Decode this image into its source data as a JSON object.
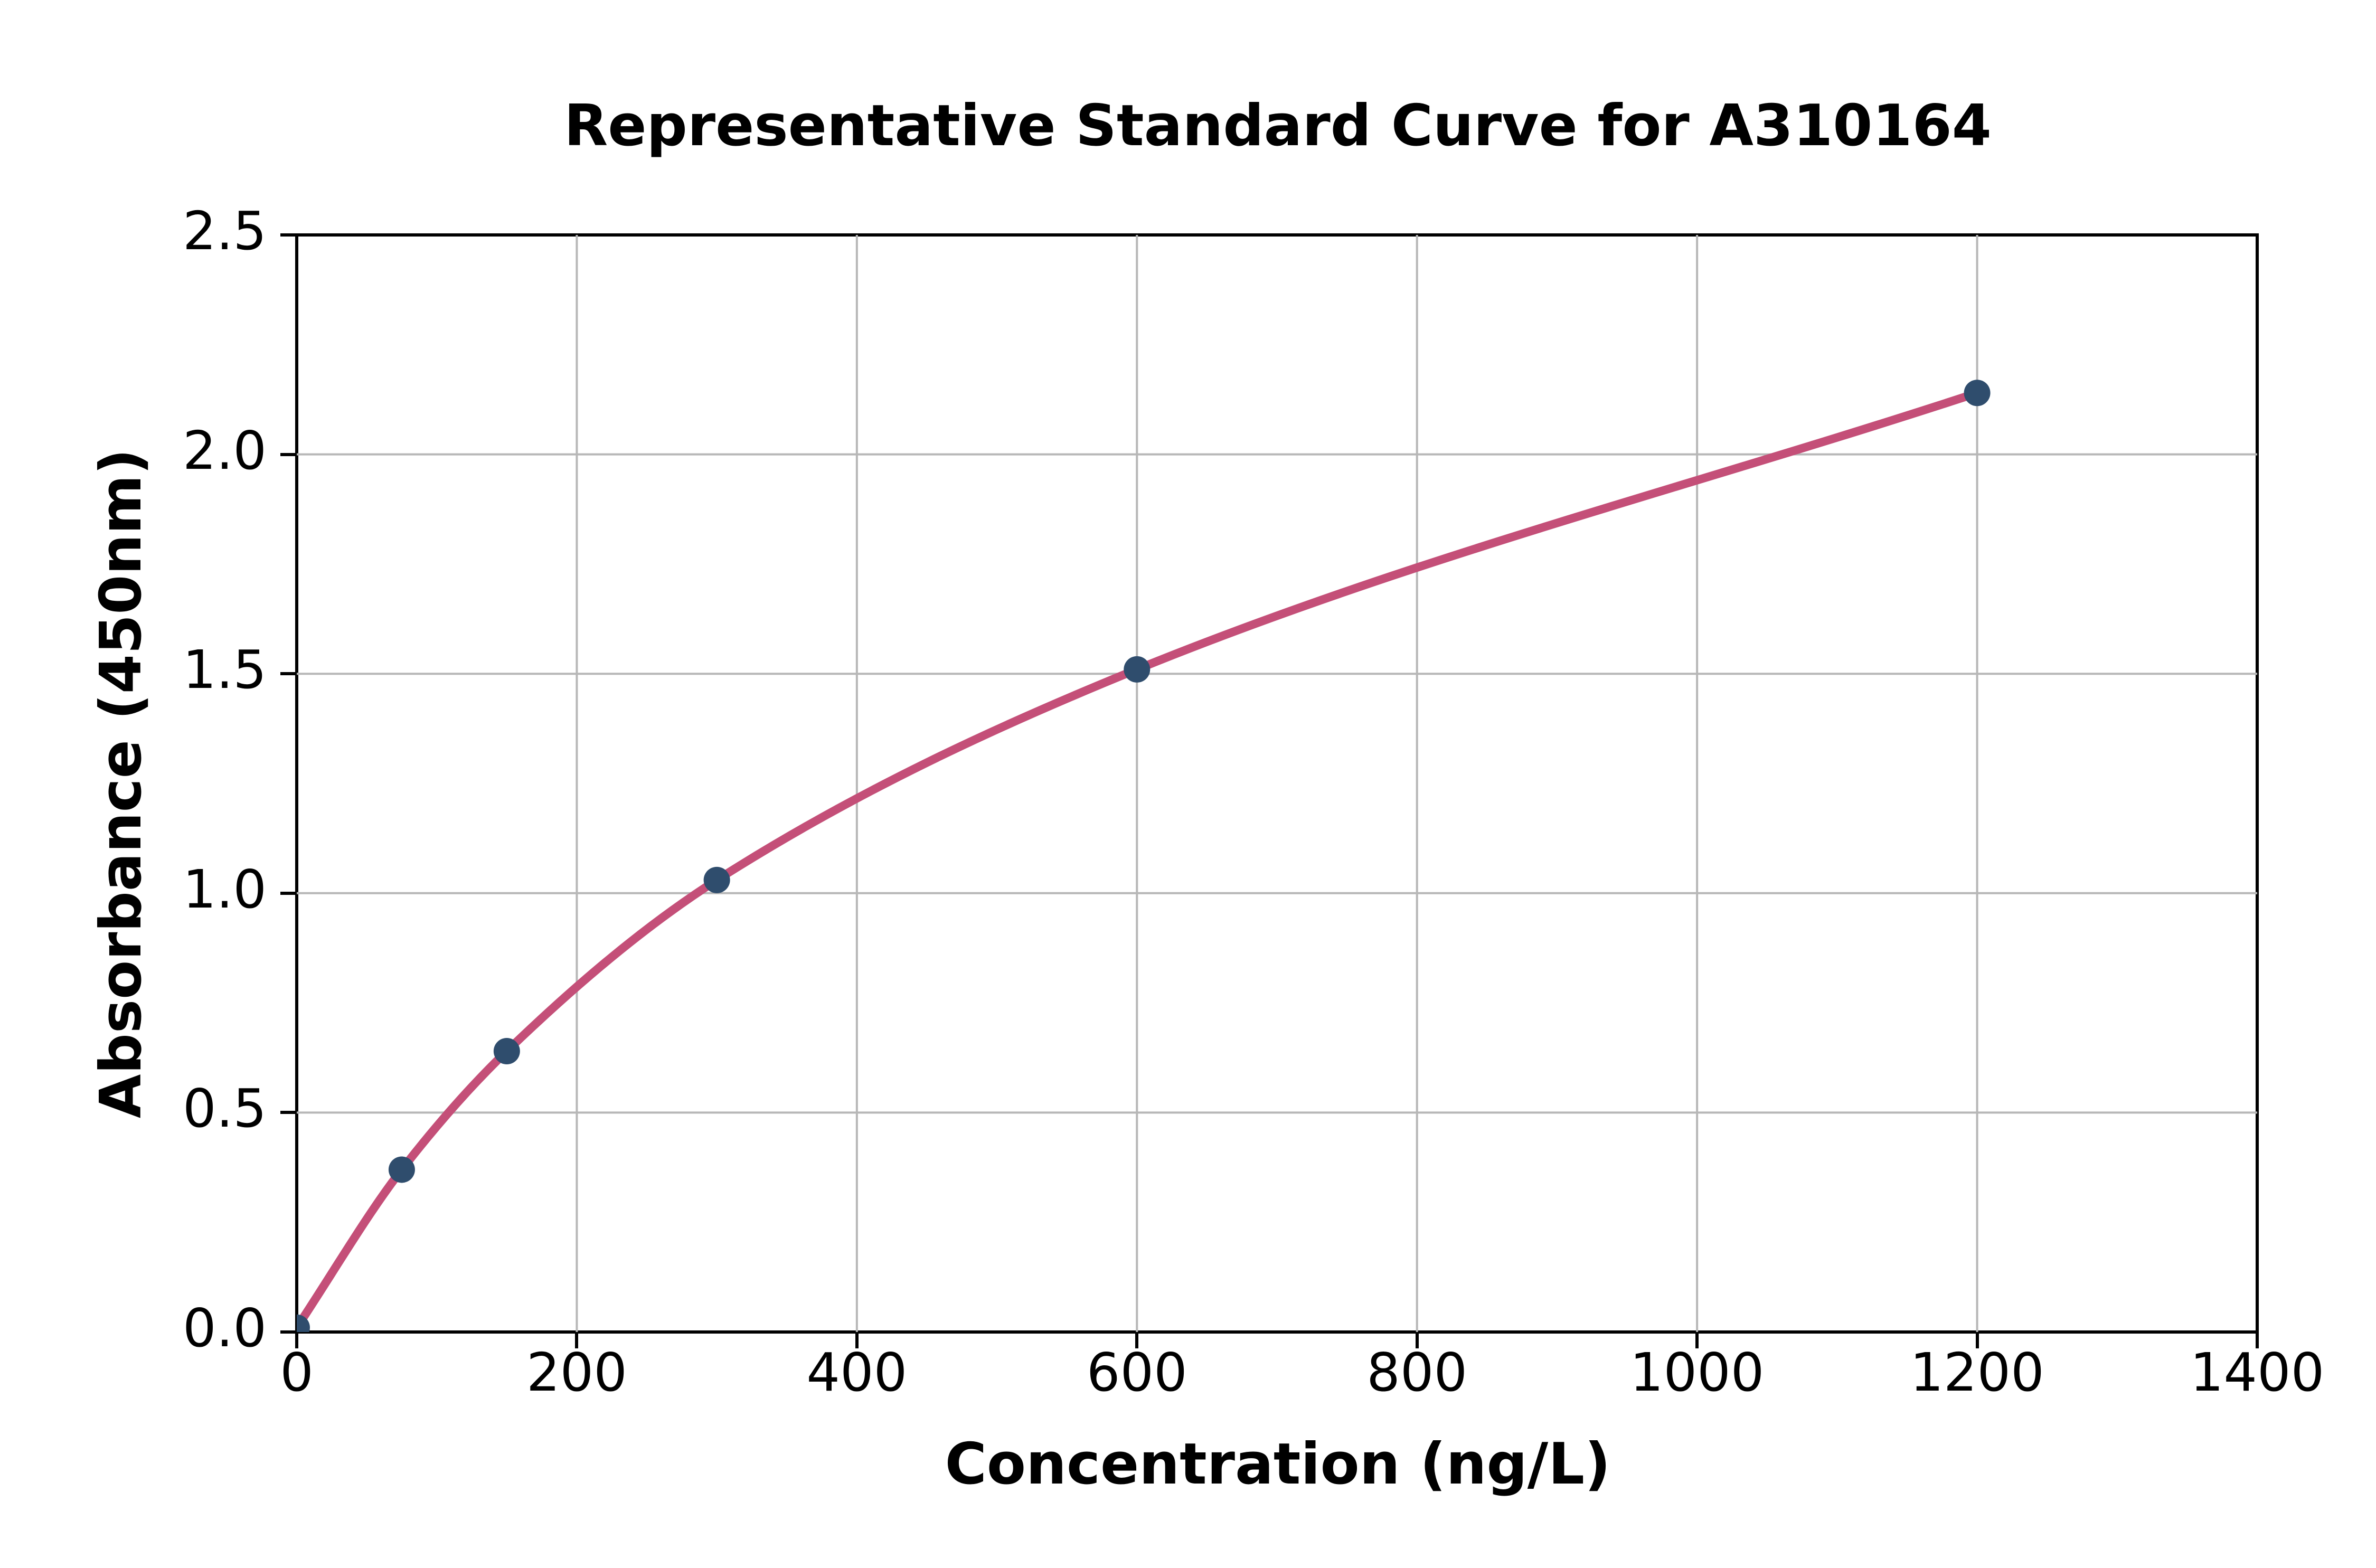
{
  "chart_data": {
    "type": "scatter",
    "title": "Representative Standard Curve for A310164",
    "xlabel": "Concentration (ng/L)",
    "ylabel": "Absorbance (450nm)",
    "xlim": [
      0,
      1400
    ],
    "ylim": [
      0,
      2.5
    ],
    "x_tick_labels": [
      "0",
      "200",
      "400",
      "600",
      "800",
      "1000",
      "1200",
      "1400"
    ],
    "y_tick_labels": [
      "0.0",
      "0.5",
      "1.0",
      "1.5",
      "2.0",
      "2.5"
    ],
    "grid": true,
    "legend": "none",
    "fit_curve": true,
    "points": [
      {
        "x": 0,
        "y": 0.01
      },
      {
        "x": 75,
        "y": 0.37
      },
      {
        "x": 150,
        "y": 0.64
      },
      {
        "x": 300,
        "y": 1.03
      },
      {
        "x": 600,
        "y": 1.51
      },
      {
        "x": 1200,
        "y": 2.14
      }
    ],
    "colors": {
      "curve": "#c44f78",
      "marker": "#2f4d6d",
      "grid": "#b7b7b7",
      "axes": "#000000",
      "text": "#000000",
      "background": "#ffffff"
    }
  }
}
